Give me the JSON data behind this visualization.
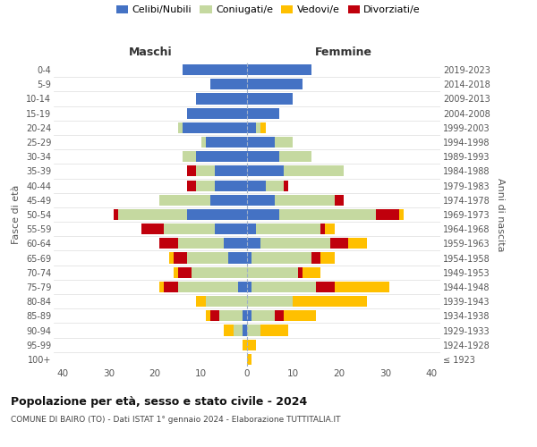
{
  "age_groups": [
    "100+",
    "95-99",
    "90-94",
    "85-89",
    "80-84",
    "75-79",
    "70-74",
    "65-69",
    "60-64",
    "55-59",
    "50-54",
    "45-49",
    "40-44",
    "35-39",
    "30-34",
    "25-29",
    "20-24",
    "15-19",
    "10-14",
    "5-9",
    "0-4"
  ],
  "birth_years": [
    "≤ 1923",
    "1924-1928",
    "1929-1933",
    "1934-1938",
    "1939-1943",
    "1944-1948",
    "1949-1953",
    "1954-1958",
    "1959-1963",
    "1964-1968",
    "1969-1973",
    "1974-1978",
    "1979-1983",
    "1984-1988",
    "1989-1993",
    "1994-1998",
    "1999-2003",
    "2004-2008",
    "2009-2013",
    "2014-2018",
    "2019-2023"
  ],
  "colors": {
    "celibe": "#4472c4",
    "coniugato": "#c5d9a0",
    "vedovo": "#ffc000",
    "divorziato": "#c0000c"
  },
  "maschi": {
    "celibe": [
      0,
      0,
      1,
      1,
      0,
      2,
      0,
      4,
      5,
      7,
      13,
      8,
      7,
      7,
      11,
      9,
      14,
      13,
      11,
      8,
      14
    ],
    "coniugato": [
      0,
      0,
      2,
      5,
      9,
      13,
      12,
      9,
      10,
      11,
      15,
      11,
      4,
      4,
      3,
      1,
      1,
      0,
      0,
      0,
      0
    ],
    "vedovo": [
      0,
      1,
      2,
      1,
      2,
      1,
      1,
      1,
      0,
      0,
      0,
      0,
      0,
      0,
      0,
      0,
      0,
      0,
      0,
      0,
      0
    ],
    "divorziato": [
      0,
      0,
      0,
      2,
      0,
      3,
      3,
      3,
      4,
      5,
      1,
      0,
      2,
      2,
      0,
      0,
      0,
      0,
      0,
      0,
      0
    ]
  },
  "femmine": {
    "nubile": [
      0,
      0,
      0,
      1,
      0,
      1,
      0,
      1,
      3,
      2,
      7,
      6,
      4,
      8,
      7,
      6,
      2,
      7,
      10,
      12,
      14
    ],
    "coniugata": [
      0,
      0,
      3,
      5,
      10,
      14,
      11,
      13,
      15,
      14,
      21,
      13,
      4,
      13,
      7,
      4,
      1,
      0,
      0,
      0,
      0
    ],
    "vedova": [
      1,
      2,
      6,
      7,
      16,
      12,
      4,
      3,
      4,
      2,
      1,
      0,
      0,
      0,
      0,
      0,
      1,
      0,
      0,
      0,
      0
    ],
    "divorziata": [
      0,
      0,
      0,
      2,
      0,
      4,
      1,
      2,
      4,
      1,
      5,
      2,
      1,
      0,
      0,
      0,
      0,
      0,
      0,
      0,
      0
    ]
  },
  "xlim": [
    -42,
    42
  ],
  "xticks": [
    -40,
    -30,
    -20,
    -10,
    0,
    10,
    20,
    30,
    40
  ],
  "xticklabels": [
    "40",
    "30",
    "20",
    "10",
    "0",
    "10",
    "20",
    "30",
    "40"
  ],
  "title": "Popolazione per età, sesso e stato civile - 2024",
  "subtitle": "COMUNE DI BAIRO (TO) - Dati ISTAT 1° gennaio 2024 - Elaborazione TUTTITALIA.IT",
  "ylabel_left": "Fasce di età",
  "ylabel_right": "Anni di nascita",
  "maschi_label": "Maschi",
  "femmine_label": "Femmine",
  "legend_labels": [
    "Celibi/Nubili",
    "Coniugati/e",
    "Vedovi/e",
    "Divorziati/e"
  ],
  "background_color": "#ffffff",
  "grid_color": "#dddddd",
  "bar_height": 0.75
}
